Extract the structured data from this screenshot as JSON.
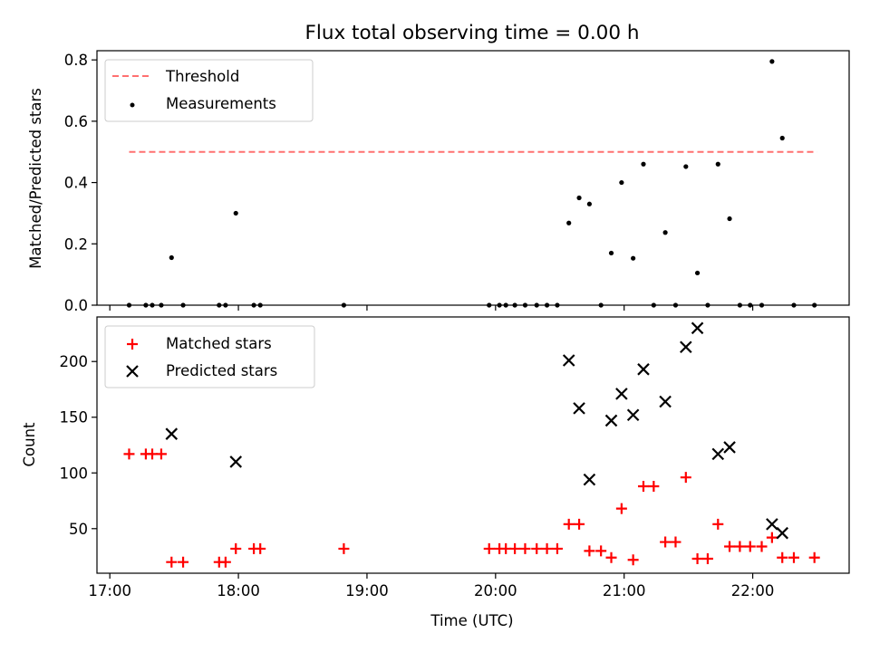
{
  "chart_data": [
    {
      "type": "scatter",
      "title": "Flux total observing time = 0.00 h",
      "xlabel": "",
      "ylabel": "Matched/Predicted stars",
      "xlim": [
        16.9,
        22.75
      ],
      "ylim": [
        0,
        0.83
      ],
      "x_ticks": [
        17,
        18,
        19,
        20,
        21,
        22
      ],
      "y_ticks": [
        0.0,
        0.2,
        0.4,
        0.6,
        0.8
      ],
      "y_tick_labels": [
        "0.0",
        "0.2",
        "0.4",
        "0.6",
        "0.8"
      ],
      "grid": false,
      "legend_position": "upper-left",
      "threshold": {
        "name": "Threshold",
        "value": 0.5,
        "x_range": [
          17.15,
          22.5
        ],
        "color": "#ff7070",
        "style": "dashed"
      },
      "series": [
        {
          "name": "Measurements",
          "marker": "dot",
          "color": "#000000",
          "points": [
            [
              17.15,
              0
            ],
            [
              17.28,
              0
            ],
            [
              17.33,
              0
            ],
            [
              17.4,
              0
            ],
            [
              17.48,
              0.155
            ],
            [
              17.57,
              0
            ],
            [
              17.85,
              0
            ],
            [
              17.9,
              0
            ],
            [
              17.98,
              0.3
            ],
            [
              18.12,
              0
            ],
            [
              18.17,
              0
            ],
            [
              18.82,
              0
            ],
            [
              19.95,
              0
            ],
            [
              20.03,
              0
            ],
            [
              20.08,
              0
            ],
            [
              20.15,
              0
            ],
            [
              20.23,
              0
            ],
            [
              20.32,
              0
            ],
            [
              20.4,
              0
            ],
            [
              20.48,
              0
            ],
            [
              20.57,
              0.268
            ],
            [
              20.65,
              0.35
            ],
            [
              20.73,
              0.33
            ],
            [
              20.82,
              0
            ],
            [
              20.9,
              0.17
            ],
            [
              20.98,
              0.4
            ],
            [
              21.07,
              0.153
            ],
            [
              21.15,
              0.46
            ],
            [
              21.23,
              0
            ],
            [
              21.32,
              0.237
            ],
            [
              21.4,
              0
            ],
            [
              21.48,
              0.452
            ],
            [
              21.57,
              0.105
            ],
            [
              21.65,
              0
            ],
            [
              21.73,
              0.46
            ],
            [
              21.82,
              0.282
            ],
            [
              21.9,
              0
            ],
            [
              21.98,
              0
            ],
            [
              22.07,
              0
            ],
            [
              22.15,
              0.795
            ],
            [
              22.23,
              0.545
            ],
            [
              22.32,
              0
            ],
            [
              22.48,
              0
            ]
          ]
        }
      ]
    },
    {
      "type": "scatter",
      "title": "",
      "xlabel": "Time (UTC)",
      "ylabel": "Count",
      "xlim": [
        16.9,
        22.75
      ],
      "ylim": [
        10,
        240
      ],
      "x_ticks": [
        17,
        18,
        19,
        20,
        21,
        22
      ],
      "x_tick_labels": [
        "17:00",
        "18:00",
        "19:00",
        "20:00",
        "21:00",
        "22:00"
      ],
      "y_ticks": [
        50,
        100,
        150,
        200
      ],
      "y_tick_labels": [
        "50",
        "100",
        "150",
        "200"
      ],
      "grid": false,
      "legend_position": "upper-left",
      "series": [
        {
          "name": "Matched stars",
          "marker": "plus",
          "color": "#ff0000",
          "points": [
            [
              17.15,
              117
            ],
            [
              17.28,
              117
            ],
            [
              17.33,
              117
            ],
            [
              17.4,
              117
            ],
            [
              17.48,
              20
            ],
            [
              17.57,
              20
            ],
            [
              17.85,
              20
            ],
            [
              17.9,
              20
            ],
            [
              17.98,
              32
            ],
            [
              18.12,
              32
            ],
            [
              18.17,
              32
            ],
            [
              18.82,
              32
            ],
            [
              19.95,
              32
            ],
            [
              20.03,
              32
            ],
            [
              20.08,
              32
            ],
            [
              20.15,
              32
            ],
            [
              20.23,
              32
            ],
            [
              20.32,
              32
            ],
            [
              20.4,
              32
            ],
            [
              20.48,
              32
            ],
            [
              20.57,
              54
            ],
            [
              20.65,
              54
            ],
            [
              20.73,
              30
            ],
            [
              20.82,
              30
            ],
            [
              20.9,
              24
            ],
            [
              20.98,
              68
            ],
            [
              21.07,
              22
            ],
            [
              21.15,
              88
            ],
            [
              21.23,
              88
            ],
            [
              21.32,
              38
            ],
            [
              21.4,
              38
            ],
            [
              21.48,
              96
            ],
            [
              21.57,
              23
            ],
            [
              21.65,
              23
            ],
            [
              21.73,
              54
            ],
            [
              21.82,
              34
            ],
            [
              21.9,
              34
            ],
            [
              21.98,
              34
            ],
            [
              22.07,
              34
            ],
            [
              22.15,
              42
            ],
            [
              22.23,
              24
            ],
            [
              22.32,
              24
            ],
            [
              22.48,
              24
            ]
          ]
        },
        {
          "name": "Predicted stars",
          "marker": "x",
          "color": "#000000",
          "points": [
            [
              17.48,
              135
            ],
            [
              17.98,
              110
            ],
            [
              20.57,
              201
            ],
            [
              20.65,
              158
            ],
            [
              20.73,
              94
            ],
            [
              20.9,
              147
            ],
            [
              20.98,
              171
            ],
            [
              21.07,
              152
            ],
            [
              21.15,
              193
            ],
            [
              21.32,
              164
            ],
            [
              21.48,
              213
            ],
            [
              21.57,
              230
            ],
            [
              21.73,
              117
            ],
            [
              21.82,
              123
            ],
            [
              22.15,
              54
            ],
            [
              22.23,
              46
            ]
          ]
        }
      ]
    }
  ]
}
